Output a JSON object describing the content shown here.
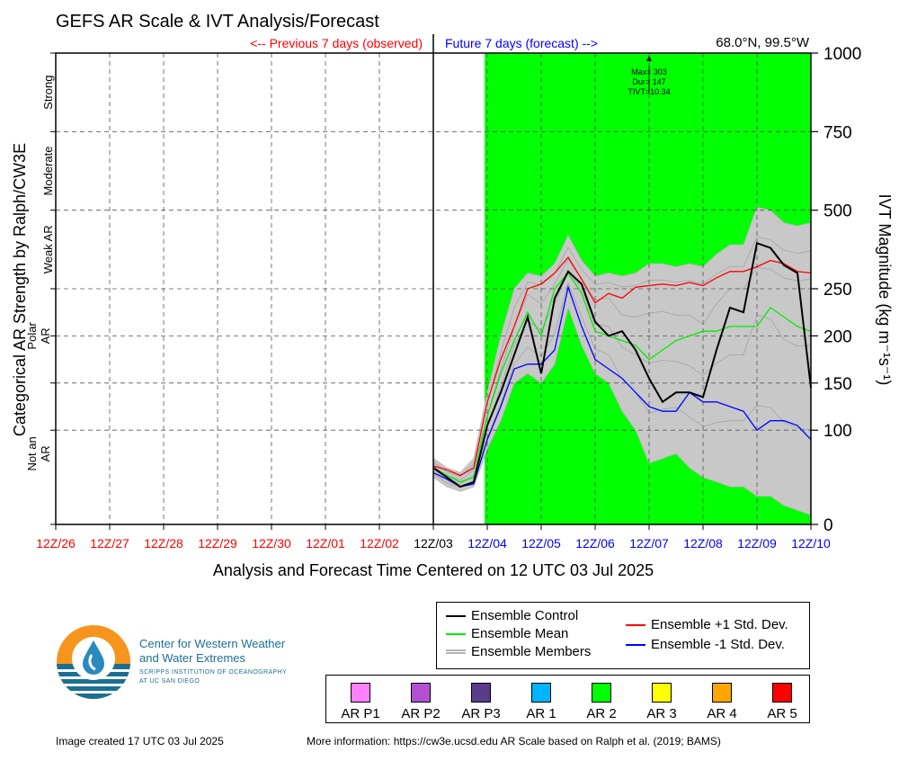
{
  "title": "GEFS AR Scale & IVT Analysis/Forecast",
  "location": "68.0°N, 99.5°W",
  "prev_label": "<-- Previous 7 days (observed)",
  "future_label": "Future 7 days (forecast) -->",
  "xlabel": "Analysis and Forecast Time Centered on 12 UTC 03 Jul 2025",
  "ylabel_left": "Categorical AR Strength by Ralph/CW3E",
  "ylabel_right": "IVT Magnitude (kg m⁻¹s⁻¹)",
  "annotation": [
    "Max= 303",
    "Dur= 147",
    "TIVT=10.34"
  ],
  "colors": {
    "observed": "#ff0000",
    "forecast": "#0000ff",
    "ar_highlight": "#00ff00",
    "control": "#000000",
    "mean": "#00ee00",
    "plus_std": "#ff0000",
    "minus_std": "#0000ff",
    "members": "#b4b4b4"
  },
  "legend": {
    "control": "Ensemble Control",
    "mean": "Ensemble Mean",
    "members": "Ensemble Members",
    "plus_std": "Ensemble +1 Std. Dev.",
    "minus_std": "Ensemble -1 Std. Dev."
  },
  "categories": [
    {
      "label": "AR P1",
      "color": "#ff80ff"
    },
    {
      "label": "AR P2",
      "color": "#b44fd2"
    },
    {
      "label": "AR P3",
      "color": "#5a3c8c"
    },
    {
      "label": "AR 1",
      "color": "#00b4ff"
    },
    {
      "label": "AR 2",
      "color": "#00ff00"
    },
    {
      "label": "AR 3",
      "color": "#ffff00"
    },
    {
      "label": "AR 4",
      "color": "#ffa500"
    },
    {
      "label": "AR 5",
      "color": "#ff0000"
    }
  ],
  "logo": {
    "line1": "Center for Western Weather",
    "line2": "and Water Extremes",
    "line3": "SCRIPPS INSTITUTION OF OCEANOGRAPHY",
    "line4": "AT UC SAN DIEGO"
  },
  "footer": {
    "created": "Image created 17 UTC 03 Jul 2025",
    "more_info": "More information: https://cw3e.ucsd.edu AR Scale based on Ralph et al. (2019; BAMS)"
  },
  "chart_data": {
    "type": "line",
    "x_ticks": [
      "12Z/26",
      "12Z/27",
      "12Z/28",
      "12Z/29",
      "12Z/30",
      "12Z/01",
      "12Z/02",
      "12Z/03",
      "12Z/04",
      "12Z/05",
      "12Z/06",
      "12Z/07",
      "12Z/08",
      "12Z/09",
      "12Z/10"
    ],
    "x_tick_colors": [
      "observed",
      "observed",
      "observed",
      "observed",
      "observed",
      "observed",
      "observed",
      "control",
      "forecast",
      "forecast",
      "forecast",
      "forecast",
      "forecast",
      "forecast",
      "forecast"
    ],
    "y_ticks": [
      0,
      100,
      150,
      200,
      250,
      500,
      750,
      1000
    ],
    "ylim": [
      0,
      1000
    ],
    "xlim_days": [
      0,
      14
    ],
    "category_labels": [
      "Not an AR",
      "Polar AR",
      "Weak AR",
      "Moderate",
      "Strong"
    ],
    "ar_highlight_days": [
      7.95,
      14
    ],
    "x_days": [
      7.0,
      7.25,
      7.5,
      7.75,
      8.0,
      8.25,
      8.5,
      8.75,
      9.0,
      9.25,
      9.5,
      9.75,
      10.0,
      10.25,
      10.5,
      10.75,
      11.0,
      11.25,
      11.5,
      11.75,
      12.0,
      12.25,
      12.5,
      12.75,
      13.0,
      13.25,
      13.5,
      13.75,
      14.0
    ],
    "series": [
      {
        "key": "control",
        "name": "Ensemble Control",
        "values": [
          60,
          50,
          40,
          45,
          105,
          140,
          180,
          220,
          160,
          240,
          305,
          265,
          215,
          200,
          205,
          185,
          155,
          130,
          140,
          140,
          135,
          185,
          230,
          225,
          395,
          380,
          325,
          300,
          145
        ]
      },
      {
        "key": "mean",
        "name": "Ensemble Mean",
        "values": [
          60,
          52,
          45,
          50,
          115,
          160,
          195,
          225,
          200,
          250,
          300,
          245,
          205,
          200,
          195,
          190,
          175,
          185,
          195,
          200,
          205,
          205,
          210,
          210,
          210,
          230,
          220,
          210,
          205
        ]
      },
      {
        "key": "plus_std",
        "name": "Ensemble +1 Std. Dev.",
        "values": [
          62,
          58,
          52,
          60,
          130,
          175,
          210,
          250,
          265,
          300,
          350,
          280,
          235,
          245,
          240,
          255,
          260,
          265,
          260,
          270,
          260,
          285,
          305,
          305,
          320,
          340,
          330,
          305,
          300
        ]
      },
      {
        "key": "minus_std",
        "name": "Ensemble -1 Std. Dev.",
        "values": [
          55,
          48,
          40,
          43,
          90,
          125,
          165,
          170,
          170,
          185,
          255,
          210,
          175,
          165,
          155,
          140,
          125,
          120,
          120,
          140,
          130,
          130,
          125,
          120,
          100,
          110,
          110,
          105,
          90
        ]
      }
    ],
    "members_envelope": {
      "upper": [
        70,
        60,
        55,
        70,
        140,
        200,
        250,
        300,
        290,
        330,
        420,
        340,
        290,
        300,
        290,
        300,
        330,
        330,
        320,
        330,
        320,
        360,
        390,
        390,
        510,
        500,
        460,
        450,
        460
      ],
      "lower": [
        50,
        40,
        35,
        40,
        80,
        110,
        150,
        160,
        150,
        170,
        230,
        190,
        160,
        150,
        120,
        100,
        65,
        70,
        75,
        60,
        50,
        45,
        40,
        40,
        30,
        30,
        20,
        15,
        10
      ]
    }
  }
}
